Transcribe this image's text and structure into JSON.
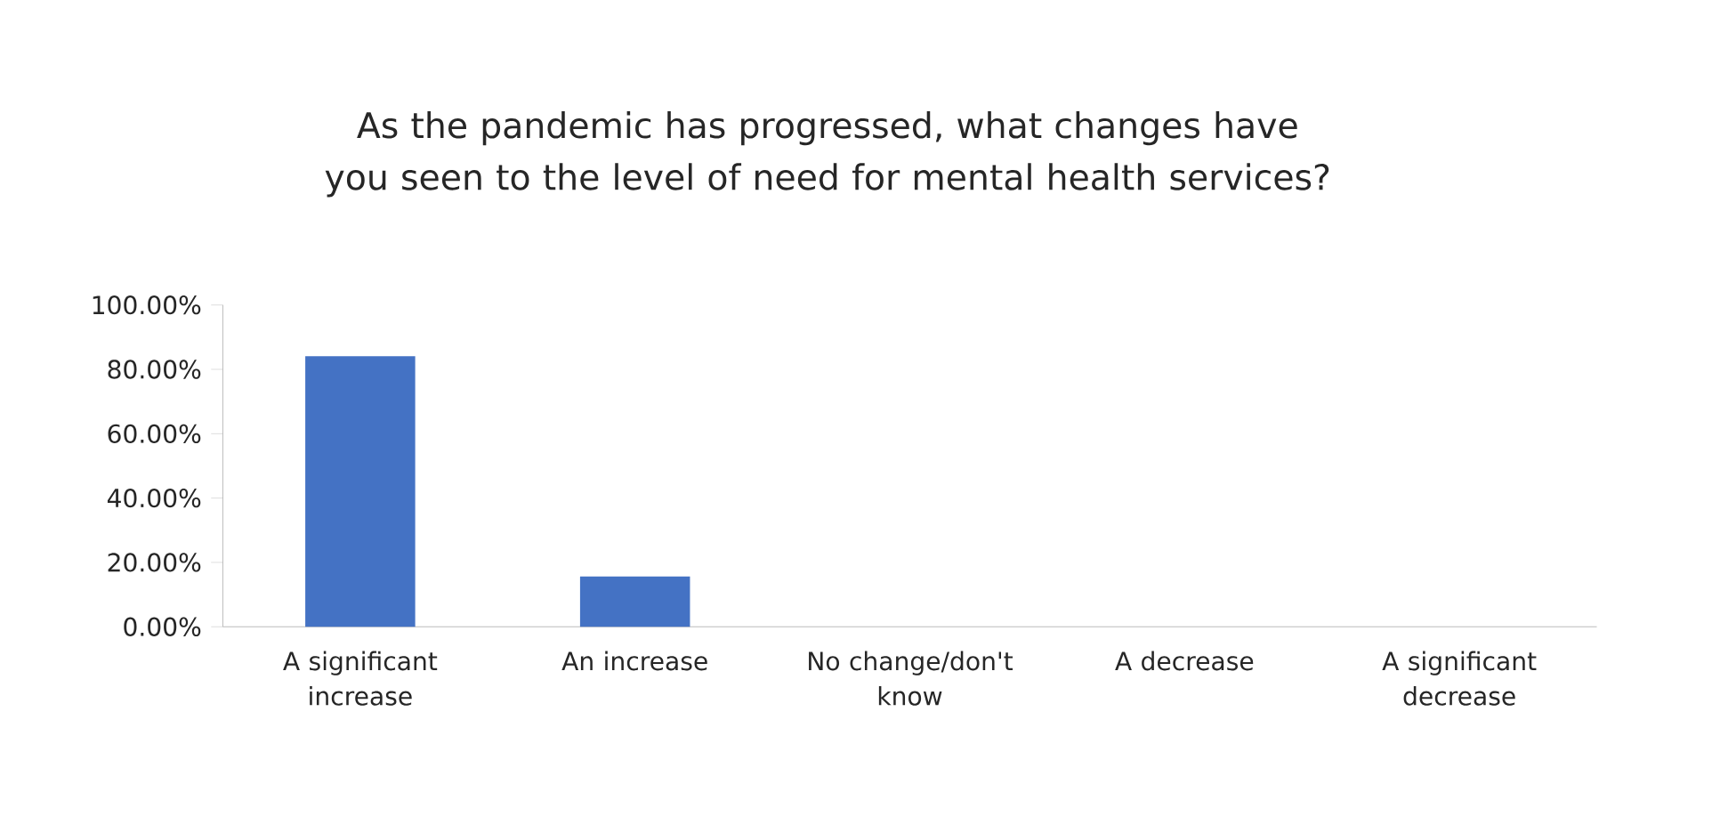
{
  "chart_data": {
    "type": "bar",
    "title": "As the pandemic has progressed, what changes have you seen to the level of need for mental health services?",
    "categories": [
      "A significant increase",
      "An increase",
      "No change/don't know",
      "A decrease",
      "A significant decrease"
    ],
    "values": [
      84.1,
      15.6,
      0,
      0,
      0
    ],
    "color": "#4472c4",
    "ylim": [
      0,
      100
    ],
    "yticks": [
      {
        "value": 0,
        "label": "0.00%"
      },
      {
        "value": 20,
        "label": "20.00%"
      },
      {
        "value": 40,
        "label": "40.00%"
      },
      {
        "value": 60,
        "label": "60.00%"
      },
      {
        "value": 80,
        "label": "80.00%"
      },
      {
        "value": 100,
        "label": "100.00%"
      }
    ]
  }
}
